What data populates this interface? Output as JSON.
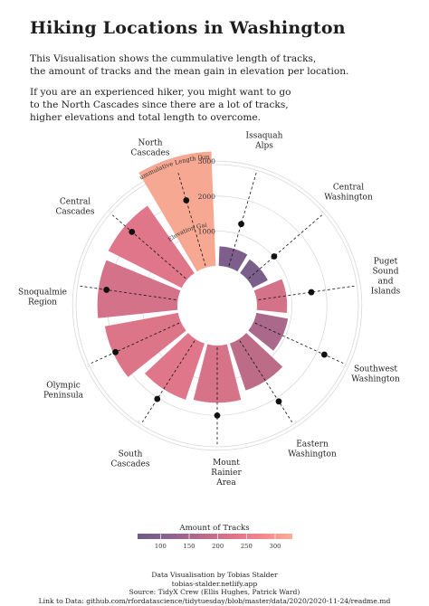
{
  "title": "Hiking Locations in Washington",
  "subtitle_lines": [
    "This Visualisation shows the cummulative length of tracks,",
    "the amount of tracks and the mean gain in elevation per location."
  ],
  "note_lines": [
    "If you are an experienced hiker, you might want to go",
    "to the North Cascades since there are a lot of tracks,",
    "higher elevations and total length to overcome."
  ],
  "chart_data": {
    "type": "bar",
    "coordinate_system": "polar",
    "radial_axis": {
      "title": "Cummulative Length [km]",
      "ticks": [
        1000,
        2000,
        3000
      ],
      "tick_labels": [
        "1000",
        "2000",
        "3000"
      ],
      "max": 3400
    },
    "secondary_axis_title": "Mean Elevation Gain [m]",
    "categories": [
      [
        "Issaquah",
        "Alps"
      ],
      [
        "Central",
        "Washington"
      ],
      [
        "Puget",
        "Sound",
        "and",
        "Islands"
      ],
      [
        "Southwest",
        "Washington"
      ],
      [
        "Eastern",
        "Washington"
      ],
      [
        "Mount",
        "Rainier",
        "Area"
      ],
      [
        "South",
        "Cascades"
      ],
      [
        "Olympic",
        "Peninsula"
      ],
      [
        "Snoqualmie",
        "Region"
      ],
      [
        "Central",
        "Cascades"
      ],
      [
        "North",
        "Cascades"
      ]
    ],
    "series": [
      {
        "name": "Cummulative Length [km]",
        "values": [
          560,
          480,
          860,
          920,
          1420,
          1640,
          1700,
          2130,
          2290,
          2350,
          3280
        ]
      },
      {
        "name": "Mean Elevation Gain [m]",
        "values": [
          0.46,
          0.36,
          0.56,
          0.79,
          0.75,
          0.71,
          0.72,
          0.73,
          0.73,
          0.74,
          0.71
        ]
      },
      {
        "name": "Amount of Tracks",
        "values": [
          90,
          85,
          210,
          155,
          180,
          215,
          230,
          225,
          210,
          230,
          320
        ]
      }
    ],
    "color_legend": {
      "title": "Amount of Tracks",
      "ticks": [
        100,
        150,
        200,
        250,
        300
      ],
      "tick_labels": [
        "100",
        "150",
        "200",
        "250",
        "300"
      ],
      "range": [
        60,
        330
      ],
      "colors": [
        "#6d5c86",
        "#8b6290",
        "#b46a88",
        "#dc7488",
        "#f4848c",
        "#f8b095"
      ]
    }
  },
  "footer_lines": [
    "Data Visualisation by Tobias Stalder",
    "tobias-stalder.netlify.app",
    "Source: TidyX Crew (Ellis Hughes, Patrick Ward)",
    "Link to Data: github.com/rfordatascience/tidytuesday/blob/master/data/2020/2020-11-24/readme.md"
  ]
}
